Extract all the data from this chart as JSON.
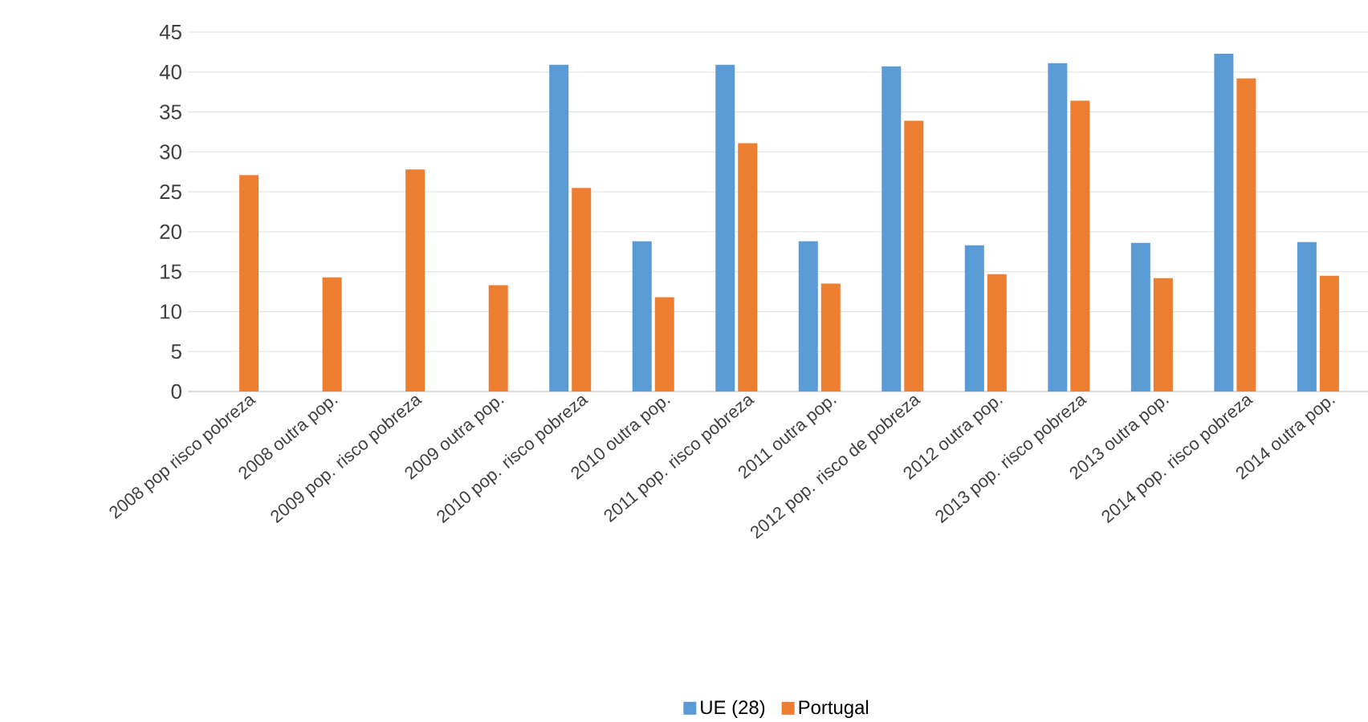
{
  "chart_data": {
    "type": "bar",
    "categories": [
      "2008 pop risco pobreza",
      "2008 outra pop.",
      "2009 pop. risco pobreza",
      "2009 outra pop.",
      "2010 pop. risco pobreza",
      "2010 outra pop.",
      "2011 pop. risco pobreza",
      "2011 outra pop.",
      "2012 pop. risco de pobreza",
      "2012 outra pop.",
      "2013 pop. risco pobreza",
      "2013 outra pop.",
      "2014 pop. risco pobreza",
      "2014 outra pop."
    ],
    "series": [
      {
        "name": "UE (28)",
        "color": "#5b9bd5",
        "values": [
          null,
          null,
          null,
          null,
          40.9,
          18.8,
          40.9,
          18.8,
          40.7,
          18.3,
          41.1,
          18.6,
          42.3,
          18.7
        ]
      },
      {
        "name": "Portugal",
        "color": "#ed7d31",
        "values": [
          27.1,
          14.3,
          27.8,
          13.3,
          25.5,
          11.8,
          31.1,
          13.5,
          33.9,
          14.7,
          36.4,
          14.2,
          39.2,
          14.5
        ]
      }
    ],
    "ylim": [
      0,
      45
    ],
    "yticks": [
      0,
      5,
      10,
      15,
      20,
      25,
      30,
      35,
      40,
      45
    ],
    "grid": "y",
    "legend": "bottom"
  }
}
